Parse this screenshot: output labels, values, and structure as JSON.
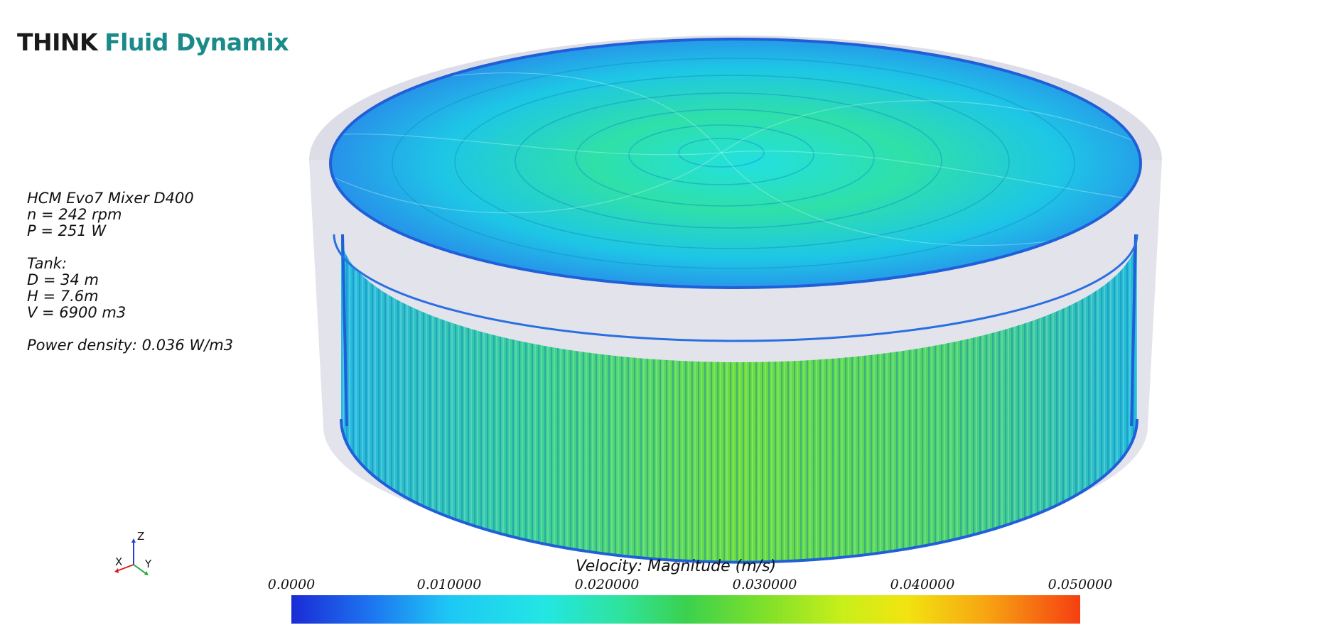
{
  "logo": {
    "think": "THINK",
    "fluid": "Fluid Dynamix"
  },
  "info": {
    "mixer": "HCM Evo7 Mixer D400",
    "speed": "n = 242 rpm",
    "power": "P = 251 W",
    "tank_heading": "Tank:",
    "diameter": "D = 34 m",
    "height": "H = 7.6m",
    "volume": "V = 6900 m3",
    "power_density": "Power density: 0.036 W/m3"
  },
  "axes": {
    "z": "Z",
    "x": "X",
    "y": "Y"
  },
  "legend": {
    "title": "Velocity: Magnitude (m/s)",
    "ticks": [
      "0.0000",
      "0.010000",
      "0.020000",
      "0.030000",
      "0.040000",
      "0.050000"
    ],
    "colors": {
      "min": "#1b2bd6",
      "mid": "#3bd14e",
      "max": "#f53f12"
    }
  }
}
